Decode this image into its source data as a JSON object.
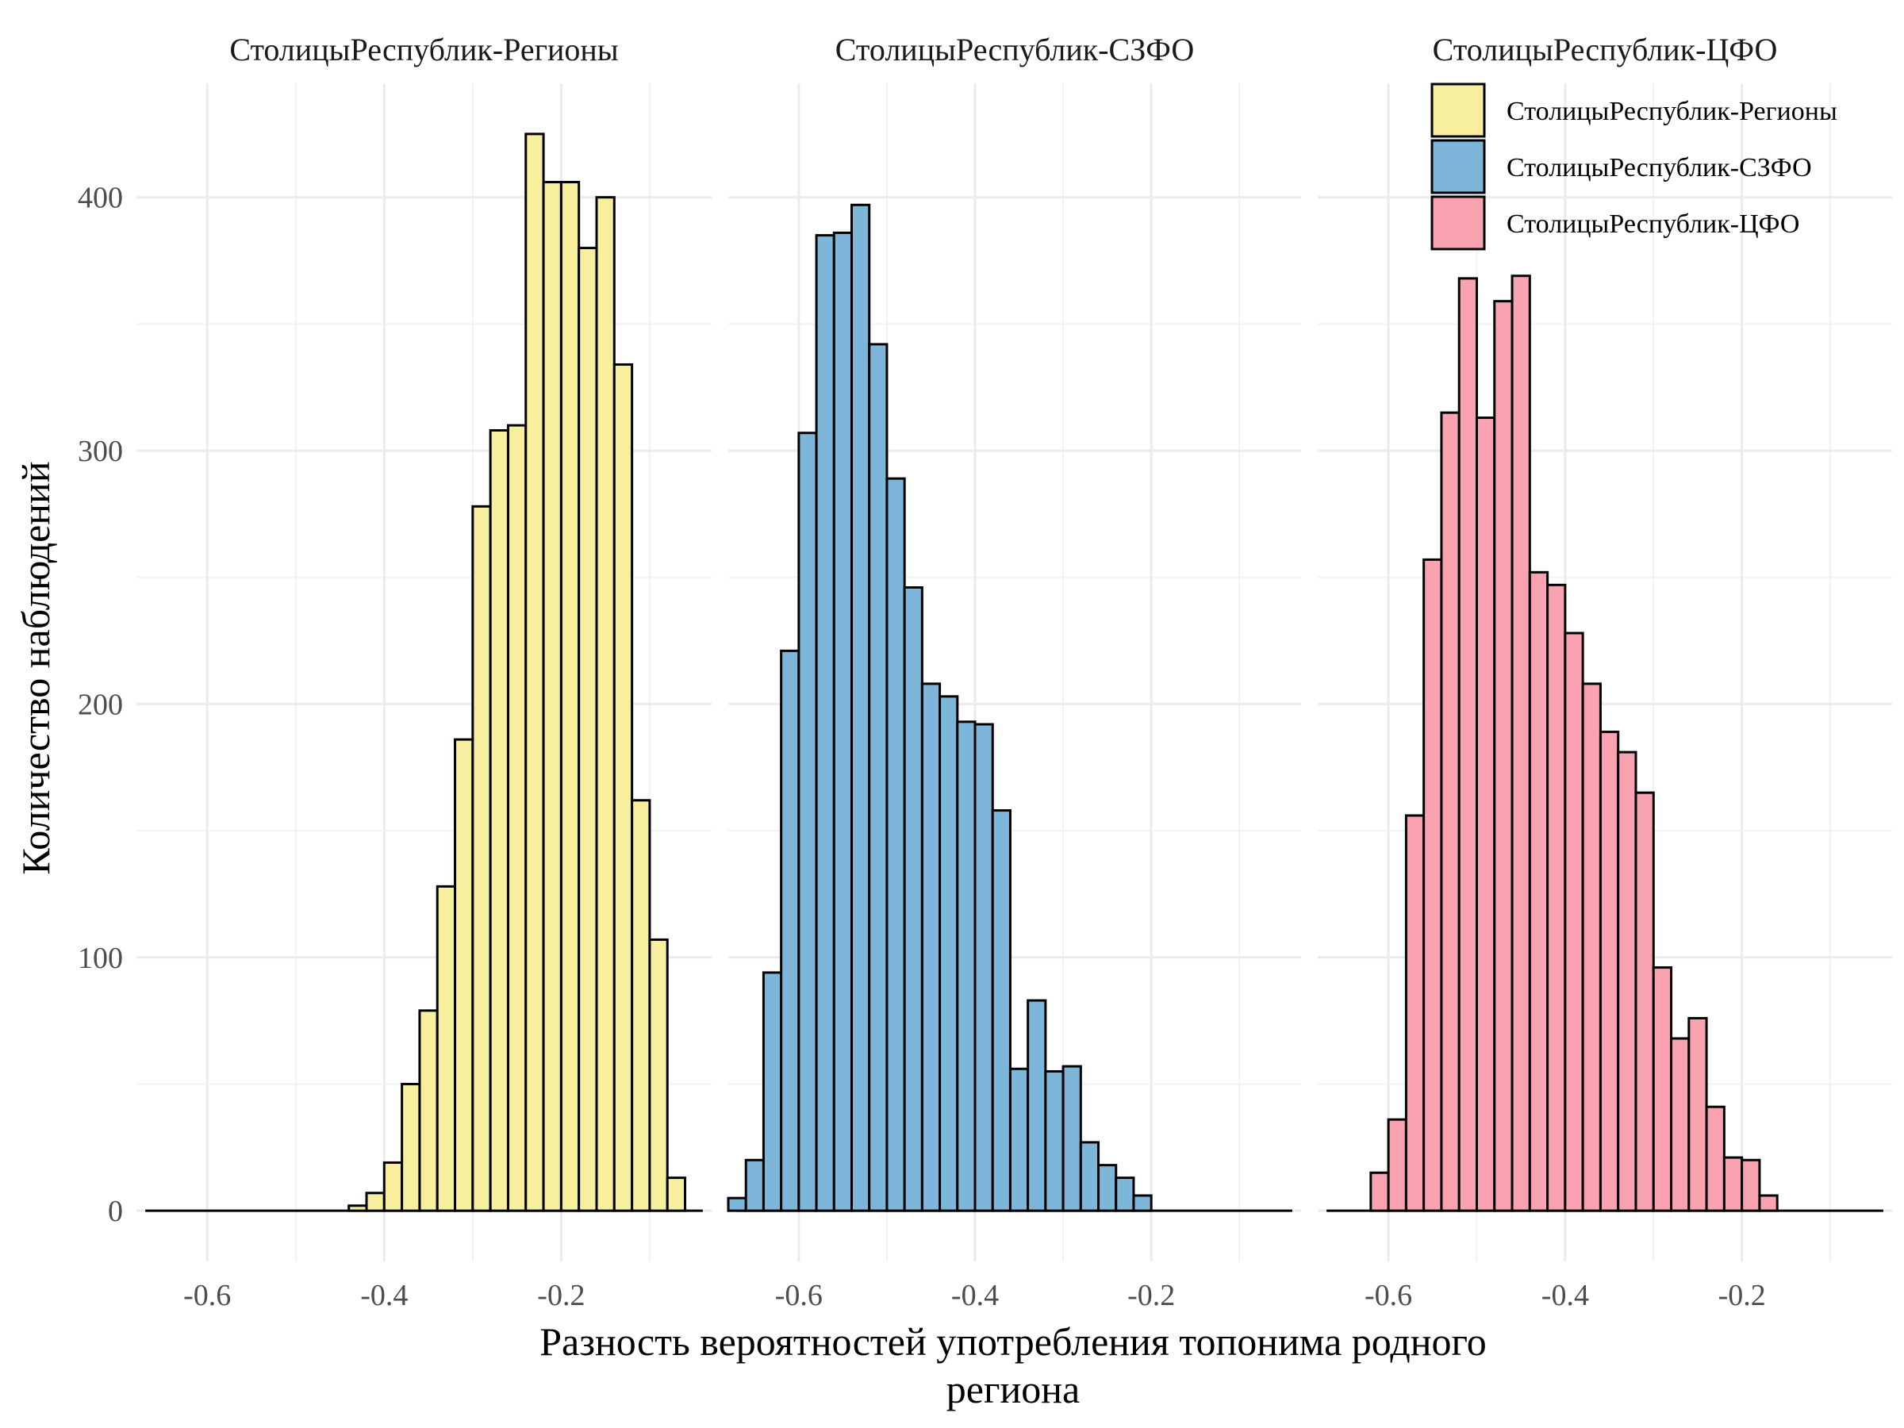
{
  "chart_data": {
    "type": "bar",
    "subtype": "faceted-histogram",
    "xlabel_lines": [
      "Разность вероятностей употребления топонима родного",
      "региона"
    ],
    "ylabel": "Количество наблюдений",
    "xlim": [
      -0.68,
      -0.03
    ],
    "ylim": [
      -20,
      445
    ],
    "xticks": [
      -0.6,
      -0.4,
      -0.2
    ],
    "xtick_labels": [
      "-0.6",
      "-0.4",
      "-0.2"
    ],
    "yticks": [
      0,
      100,
      200,
      300,
      400
    ],
    "ytick_labels": [
      "0",
      "100",
      "200",
      "300",
      "400"
    ],
    "grid": true,
    "legend_position": "top-right",
    "bin_width": 0.02,
    "series": [
      {
        "name": "СтолицыРеспублик-Регионы",
        "color": "#F7EE9E",
        "bins_start": -0.44,
        "counts": [
          2,
          7,
          19,
          50,
          79,
          128,
          186,
          278,
          308,
          310,
          425,
          406,
          406,
          380,
          400,
          334,
          162,
          107,
          13
        ]
      },
      {
        "name": "СтолицыРеспублик-СЗФО",
        "color": "#7EB6D9",
        "bins_start": -0.68,
        "counts": [
          5,
          20,
          94,
          221,
          307,
          385,
          386,
          397,
          342,
          289,
          246,
          208,
          203,
          193,
          192,
          158,
          56,
          83,
          55,
          57,
          27,
          18,
          13,
          6
        ]
      },
      {
        "name": "СтолицыРеспублик-ЦФО",
        "color": "#F9A3B0",
        "bins_start": -0.62,
        "counts": [
          15,
          36,
          156,
          257,
          315,
          368,
          313,
          359,
          369,
          252,
          247,
          228,
          208,
          189,
          181,
          165,
          96,
          68,
          76,
          41,
          21,
          20,
          6
        ]
      }
    ],
    "facets": [
      {
        "title": "СтолицыРеспублик-Регионы",
        "series": 0
      },
      {
        "title": "СтолицыРеспублик-СЗФО",
        "series": 1
      },
      {
        "title": "СтолицыРеспублик-ЦФО",
        "series": 2
      }
    ]
  }
}
